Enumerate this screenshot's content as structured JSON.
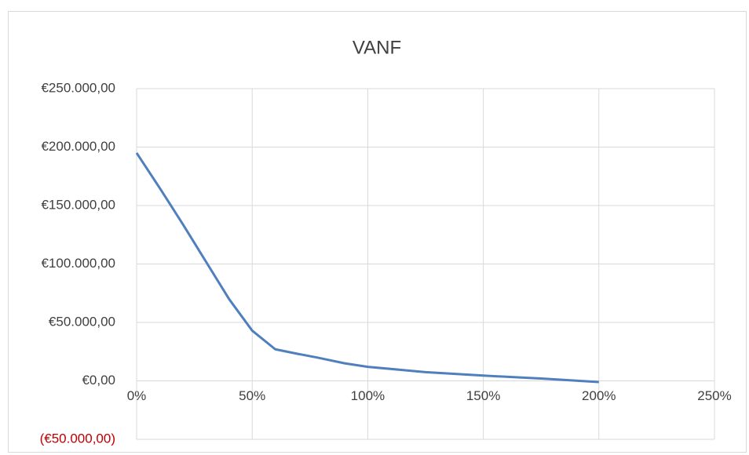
{
  "chart_data": {
    "type": "line",
    "title": "VANF",
    "x": [
      0,
      10,
      20,
      30,
      40,
      50,
      60,
      70,
      78,
      90,
      100,
      125,
      150,
      175,
      200
    ],
    "series": [
      {
        "name": "VANF",
        "color": "#4f7fbd",
        "values": [
          195000,
          165000,
          134000,
          102000,
          70000,
          43000,
          27000,
          23000,
          20000,
          15000,
          12000,
          7500,
          4500,
          2000,
          -1000
        ]
      }
    ],
    "xlim": [
      0,
      250
    ],
    "xticks": [
      {
        "value": 0,
        "label": "0%"
      },
      {
        "value": 50,
        "label": "50%"
      },
      {
        "value": 100,
        "label": "100%"
      },
      {
        "value": 150,
        "label": "150%"
      },
      {
        "value": 200,
        "label": "200%"
      },
      {
        "value": 250,
        "label": "250%"
      }
    ],
    "ylim": [
      -50000,
      250000
    ],
    "yticks": [
      {
        "value": -50000,
        "label": "(€50.000,00)"
      },
      {
        "value": 0,
        "label": "€0,00"
      },
      {
        "value": 50000,
        "label": "€50.000,00"
      },
      {
        "value": 100000,
        "label": "€100.000,00"
      },
      {
        "value": 150000,
        "label": "€150.000,00"
      },
      {
        "value": 200000,
        "label": "€200.000,00"
      },
      {
        "value": 250000,
        "label": "€250.000,00"
      }
    ],
    "grid": true,
    "negative_tick_color": "#c00000"
  }
}
